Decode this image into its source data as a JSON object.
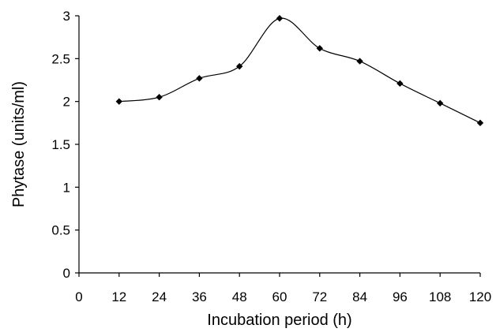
{
  "chart_data": {
    "type": "line",
    "title": "",
    "xlabel": "Incubation period (h)",
    "ylabel": "Phytase (units/ml)",
    "xlim": [
      0,
      120
    ],
    "ylim": [
      0,
      3
    ],
    "x_ticks": [
      "0",
      "12",
      "24",
      "36",
      "48",
      "60",
      "72",
      "84",
      "96",
      "108",
      "120"
    ],
    "y_ticks": [
      "0",
      "0.5",
      "1",
      "1.5",
      "2",
      "2.5",
      "3"
    ],
    "grid": false,
    "legend": "none",
    "line_color": "#000000",
    "marker": "diamond",
    "smooth": true,
    "series": [
      {
        "x": [
          12,
          24,
          36,
          48,
          60,
          72,
          84,
          96,
          108,
          120
        ],
        "values": [
          2.0,
          2.05,
          2.27,
          2.41,
          2.97,
          2.62,
          2.47,
          2.21,
          1.98,
          1.75
        ]
      }
    ]
  }
}
